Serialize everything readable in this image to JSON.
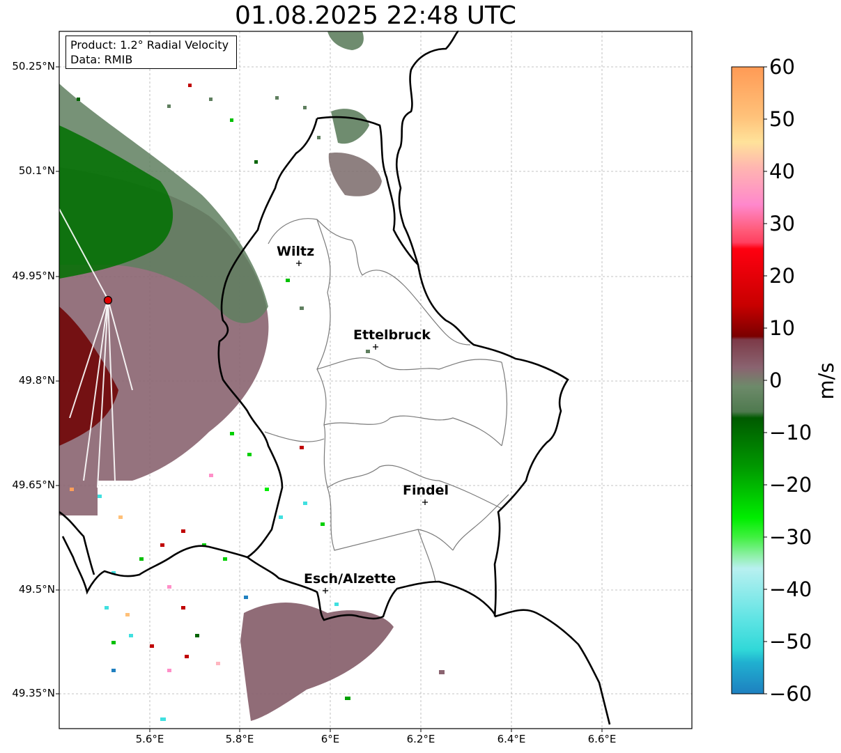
{
  "title": "01.08.2025 22:48 UTC",
  "info": {
    "product": "Product: 1.2° Radial Velocity",
    "source": "Data: RMIB"
  },
  "lat_ticks": [
    "50.25°N",
    "50.1°N",
    "49.95°N",
    "49.8°N",
    "49.65°N",
    "49.5°N",
    "49.35°N"
  ],
  "lon_ticks": [
    "5.6°E",
    "5.8°E",
    "6°E",
    "6.2°E",
    "6.4°E",
    "6.6°E"
  ],
  "cities": [
    {
      "name": "Wiltz"
    },
    {
      "name": "Ettelbruck"
    },
    {
      "name": "Findel"
    },
    {
      "name": "Esch/Alzette"
    }
  ],
  "colorbar": {
    "label": "m/s",
    "ticks": [
      "60",
      "50",
      "40",
      "30",
      "20",
      "10",
      "0",
      "−10",
      "−20",
      "−30",
      "−40",
      "−50",
      "−60"
    ],
    "colors": {
      "strong_outbound": "#ff9f5a",
      "moderate_outbound": "#ffc078",
      "light_pink": "#ff8fc8",
      "red": "#e8000f",
      "dark_red": "#7a0000",
      "near_zero_pos": "#8a6470",
      "near_zero_neg": "#5f7f5f",
      "dark_green": "#006400",
      "green": "#00c000",
      "light_green": "#7fe87f",
      "cyan": "#40e0e0",
      "blue": "#2080c0"
    }
  },
  "radar_site": {
    "color": "#e00000"
  }
}
